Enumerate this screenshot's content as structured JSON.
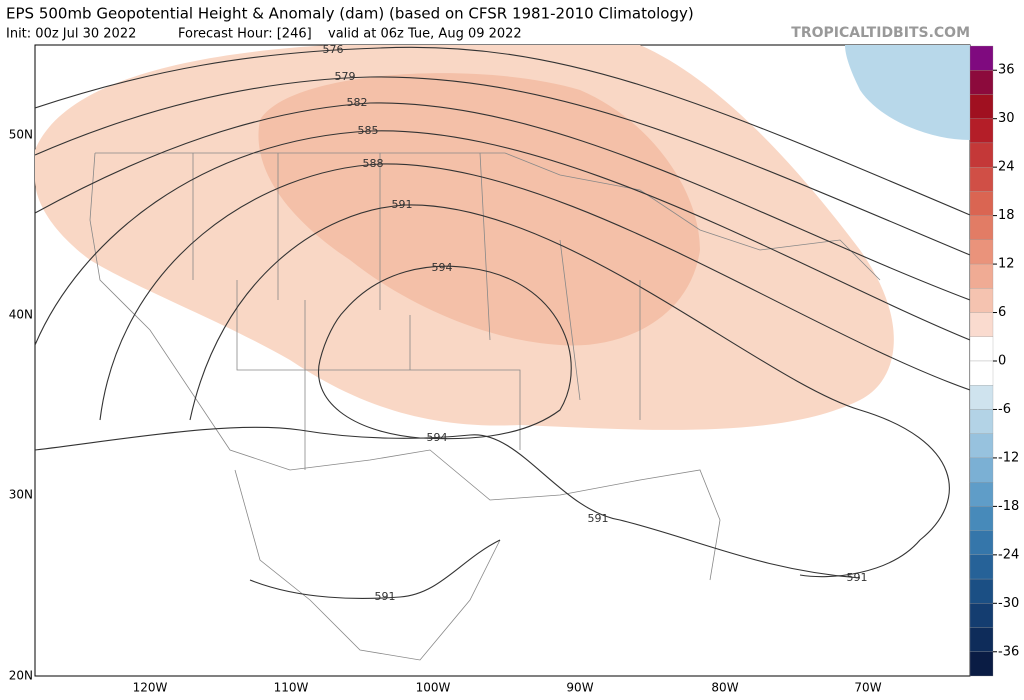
{
  "header": {
    "title": "EPS 500mb Geopotential Height & Anomaly (dam) (based on CFSR 1981-2010 Climatology)",
    "init": "Init: 00z Jul 30 2022",
    "forecast_hour": "Forecast Hour: [246]",
    "valid": "valid at 06z Tue, Aug 09 2022",
    "watermark": "TROPICALTIDBITS.COM"
  },
  "map": {
    "latitude_labels": [
      "50N",
      "40N",
      "30N",
      "20N"
    ],
    "longitude_labels": [
      "120W",
      "110W",
      "100W",
      "90W",
      "80W",
      "70W"
    ],
    "contour_labels": [
      576,
      579,
      582,
      585,
      588,
      591,
      594,
      594,
      591,
      591,
      591
    ]
  },
  "colorbar": {
    "range": [
      -39,
      39
    ],
    "ticks": [
      36,
      30,
      24,
      18,
      12,
      6,
      0,
      -6,
      -12,
      -18,
      -24,
      -30,
      -36
    ],
    "colors": [
      "#7f0a7f",
      "#8c0a3c",
      "#a01020",
      "#b41e28",
      "#c43838",
      "#d04f46",
      "#da6552",
      "#e27c65",
      "#ea937b",
      "#f0ab94",
      "#f5c3b0",
      "#fadbcf",
      "#ffffff",
      "#ffffff",
      "#cfe3ee",
      "#b3d3e6",
      "#97c2de",
      "#7bb0d4",
      "#5f9dc8",
      "#478aba",
      "#3576aa",
      "#266298",
      "#1b4f84",
      "#143d70",
      "#0e2c5a",
      "#0a1c44"
    ]
  }
}
